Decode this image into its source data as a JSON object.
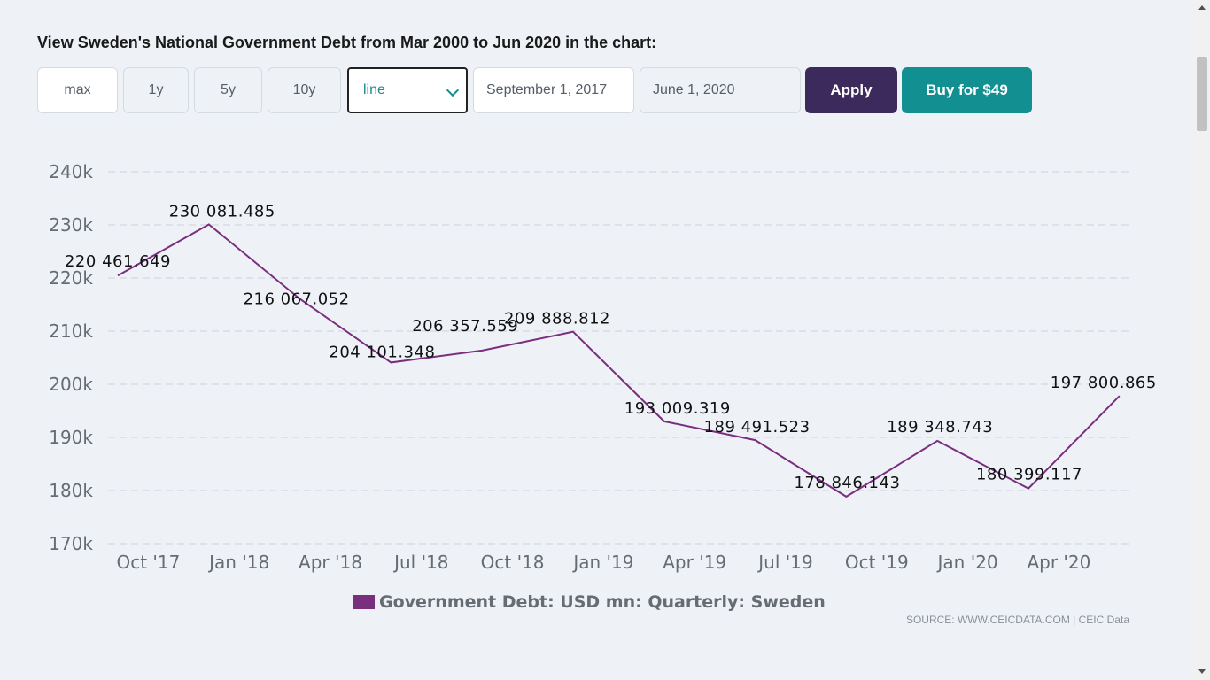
{
  "heading": "View Sweden's National Government Debt from Mar 2000 to Jun 2020 in the chart:",
  "controls": {
    "ranges": [
      "max",
      "1y",
      "5y",
      "10y"
    ],
    "active_range": "max",
    "chart_type": "line",
    "start_date": "September 1, 2017",
    "end_date": "June 1, 2020",
    "apply_label": "Apply",
    "buy_label": "Buy for $49"
  },
  "colors": {
    "series": "#7a2e7e",
    "apply": "#3d2a5c",
    "buy": "#128f91"
  },
  "source_text": "SOURCE: WWW.CEICDATA.COM | CEIC Data",
  "chart_data": {
    "type": "line",
    "title": "",
    "xlabel": "",
    "ylabel": "",
    "ylim": [
      170000,
      240000
    ],
    "yticks": [
      170000,
      180000,
      190000,
      200000,
      210000,
      220000,
      230000,
      240000
    ],
    "ytick_labels": [
      "170k",
      "180k",
      "190k",
      "200k",
      "210k",
      "220k",
      "230k",
      "240k"
    ],
    "x_tick_labels": [
      "Oct '17",
      "Jan '18",
      "Apr '18",
      "Jul '18",
      "Oct '18",
      "Jan '19",
      "Apr '19",
      "Jul '19",
      "Oct '19",
      "Jan '20",
      "Apr '20"
    ],
    "x": [
      "Sep 2017",
      "Dec 2017",
      "Mar 2018",
      "Jun 2018",
      "Sep 2018",
      "Dec 2018",
      "Mar 2019",
      "Jun 2019",
      "Sep 2019",
      "Dec 2019",
      "Mar 2020",
      "Jun 2020"
    ],
    "grid": true,
    "legend_position": "bottom",
    "series": [
      {
        "name": "Government Debt: USD mn: Quarterly: Sweden",
        "values": [
          220461.649,
          230081.485,
          216067.052,
          204101.348,
          206357.559,
          209888.812,
          193009.319,
          189491.523,
          178846.143,
          189348.743,
          180399.117,
          197800.865
        ],
        "labels": [
          "220 461.649",
          "230 081.485",
          "216 067.052",
          "204 101.348",
          "206 357.559",
          "209 888.812",
          "193 009.319",
          "189 491.523",
          "178 846.143",
          "189 348.743",
          "180 399.117",
          "197 800.865"
        ]
      }
    ]
  }
}
